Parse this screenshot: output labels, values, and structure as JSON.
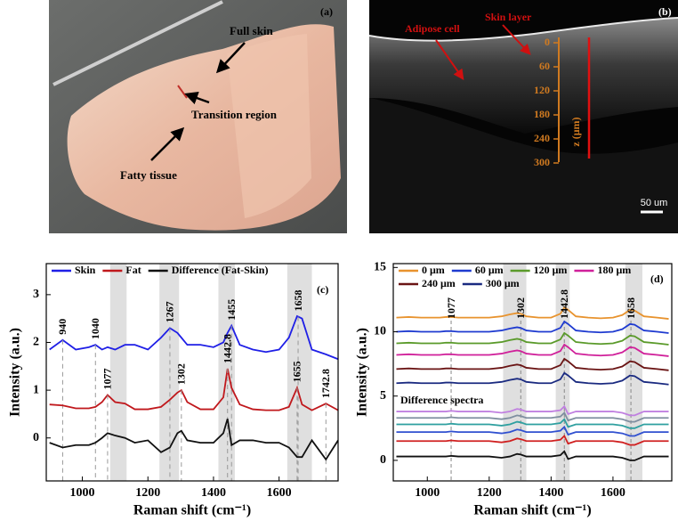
{
  "panel_a": {
    "label": "(a)",
    "annotations": [
      "Full skin",
      "Transition region",
      "Fatty tissue"
    ]
  },
  "panel_b": {
    "label": "(b)",
    "annotations": [
      "Adipose cell",
      "Skin layer"
    ],
    "depth_axis": {
      "label": "z (μm)",
      "ticks": [
        0,
        60,
        120,
        180,
        240,
        300
      ]
    },
    "scale_bar": "50 um"
  },
  "chart_data": [
    {
      "type": "line",
      "label": "(c)",
      "xlabel": "Raman shift (cm⁻¹)",
      "ylabel": "Intensity (a.u.)",
      "xlim": [
        890,
        1780
      ],
      "xticks": [
        1000,
        1200,
        1400,
        1600
      ],
      "ylim": [
        -0.9,
        3.65
      ],
      "yticks": [
        0,
        1,
        2,
        3
      ],
      "bands": [
        [
          1085,
          1135
        ],
        [
          1235,
          1295
        ],
        [
          1415,
          1465
        ],
        [
          1625,
          1700
        ]
      ],
      "x": [
        900,
        940,
        980,
        1020,
        1040,
        1060,
        1077,
        1100,
        1130,
        1160,
        1200,
        1240,
        1267,
        1290,
        1302,
        1320,
        1360,
        1400,
        1430,
        1442.8,
        1455,
        1480,
        1520,
        1560,
        1600,
        1630,
        1655,
        1670,
        1700,
        1742.8,
        1780
      ],
      "series": [
        {
          "name": "Skin",
          "color": "#1f1fe6",
          "peaks": [
            940,
            1040,
            1267,
            1455,
            1658
          ],
          "values": [
            1.85,
            2.05,
            1.85,
            1.9,
            1.95,
            1.85,
            1.9,
            1.85,
            1.95,
            1.95,
            1.85,
            2.1,
            2.3,
            2.2,
            2.1,
            1.95,
            1.95,
            1.9,
            2.0,
            2.2,
            2.35,
            1.95,
            1.85,
            1.8,
            1.85,
            2.1,
            2.55,
            2.5,
            1.85,
            1.75,
            1.65
          ]
        },
        {
          "name": "Fat",
          "color": "#c0181c",
          "peaks": [
            1077,
            1302,
            1442.8,
            1655,
            1742.8
          ],
          "values": [
            0.7,
            0.68,
            0.62,
            0.62,
            0.65,
            0.75,
            0.9,
            0.75,
            0.72,
            0.6,
            0.6,
            0.65,
            0.8,
            0.95,
            1.0,
            0.75,
            0.6,
            0.6,
            0.85,
            1.45,
            1.05,
            0.7,
            0.6,
            0.58,
            0.58,
            0.65,
            1.05,
            0.7,
            0.58,
            0.72,
            0.58
          ]
        },
        {
          "name": "Difference (Fat-Skin)",
          "color": "#111111",
          "values": [
            -0.1,
            -0.2,
            -0.15,
            -0.15,
            -0.1,
            0.0,
            0.1,
            0.05,
            0.0,
            -0.1,
            -0.05,
            -0.3,
            -0.2,
            0.1,
            0.15,
            -0.05,
            -0.1,
            -0.1,
            0.1,
            0.4,
            -0.15,
            -0.05,
            -0.05,
            -0.1,
            -0.1,
            -0.2,
            -0.4,
            -0.4,
            -0.05,
            -0.45,
            -0.05
          ]
        }
      ]
    },
    {
      "type": "line",
      "label": "(d)",
      "xlabel": "Raman shift (cm⁻¹)",
      "ylabel": "Intensity (a.u.)",
      "xlim": [
        890,
        1790
      ],
      "xticks": [
        1000,
        1200,
        1400,
        1600
      ],
      "ylim": [
        -1.6,
        15.3
      ],
      "yticks": [
        0,
        5,
        10,
        15
      ],
      "bands": [
        [
          1245,
          1320
        ],
        [
          1415,
          1460
        ],
        [
          1640,
          1695
        ]
      ],
      "peaks": [
        1077,
        1302,
        1442.8,
        1658
      ],
      "annotations": [
        "Difference spectra"
      ],
      "x": [
        900,
        940,
        980,
        1020,
        1040,
        1060,
        1077,
        1100,
        1130,
        1160,
        1200,
        1240,
        1267,
        1290,
        1302,
        1320,
        1360,
        1400,
        1430,
        1442.8,
        1455,
        1480,
        1520,
        1560,
        1600,
        1630,
        1655,
        1670,
        1700,
        1742.8,
        1780
      ],
      "series": [
        {
          "name": "0 μm",
          "color": "#e8932e",
          "values": [
            11.1,
            11.15,
            11.1,
            11.1,
            11.1,
            11.15,
            11.15,
            11.1,
            11.1,
            11.1,
            11.1,
            11.2,
            11.35,
            11.45,
            11.4,
            11.2,
            11.1,
            11.1,
            11.4,
            11.9,
            11.7,
            11.2,
            11.1,
            11.05,
            11.1,
            11.3,
            11.7,
            11.65,
            11.2,
            11.1,
            11.0
          ]
        },
        {
          "name": "60 μm",
          "color": "#1f3bd0",
          "values": [
            10.0,
            10.05,
            10.0,
            10.0,
            10.0,
            10.05,
            10.05,
            10.0,
            10.0,
            10.0,
            10.0,
            10.1,
            10.25,
            10.35,
            10.3,
            10.1,
            10.0,
            10.0,
            10.3,
            10.8,
            10.6,
            10.1,
            10.0,
            9.95,
            10.0,
            10.2,
            10.6,
            10.55,
            10.1,
            10.0,
            9.9
          ]
        },
        {
          "name": "120 μm",
          "color": "#5a9a2a",
          "values": [
            9.1,
            9.15,
            9.1,
            9.1,
            9.1,
            9.15,
            9.15,
            9.1,
            9.1,
            9.1,
            9.1,
            9.2,
            9.35,
            9.45,
            9.4,
            9.2,
            9.1,
            9.1,
            9.4,
            9.9,
            9.7,
            9.2,
            9.1,
            9.05,
            9.1,
            9.3,
            9.7,
            9.65,
            9.2,
            9.1,
            9.0
          ]
        },
        {
          "name": "180 μm",
          "color": "#d0209a",
          "values": [
            8.2,
            8.25,
            8.2,
            8.2,
            8.2,
            8.25,
            8.25,
            8.2,
            8.2,
            8.2,
            8.2,
            8.3,
            8.45,
            8.55,
            8.5,
            8.3,
            8.2,
            8.2,
            8.5,
            9.0,
            8.8,
            8.3,
            8.2,
            8.15,
            8.2,
            8.4,
            8.8,
            8.75,
            8.3,
            8.2,
            8.1
          ]
        },
        {
          "name": "240 μm",
          "color": "#6a1414",
          "values": [
            7.1,
            7.15,
            7.1,
            7.1,
            7.1,
            7.15,
            7.15,
            7.1,
            7.1,
            7.1,
            7.1,
            7.2,
            7.35,
            7.45,
            7.4,
            7.2,
            7.1,
            7.1,
            7.4,
            7.9,
            7.7,
            7.2,
            7.1,
            7.05,
            7.1,
            7.3,
            7.7,
            7.65,
            7.2,
            7.1,
            7.0
          ]
        },
        {
          "name": "300 μm",
          "color": "#1a2a80",
          "values": [
            6.0,
            6.05,
            6.0,
            6.0,
            6.0,
            6.05,
            6.05,
            6.0,
            6.0,
            6.0,
            6.0,
            6.1,
            6.25,
            6.35,
            6.3,
            6.1,
            6.0,
            6.0,
            6.3,
            6.8,
            6.6,
            6.1,
            6.0,
            5.95,
            6.0,
            6.2,
            6.6,
            6.55,
            6.1,
            6.0,
            5.9
          ]
        },
        {
          "color": "#c080e0",
          "values": [
            3.8,
            3.8,
            3.8,
            3.8,
            3.8,
            3.8,
            3.85,
            3.8,
            3.8,
            3.8,
            3.8,
            3.7,
            3.8,
            4.0,
            3.95,
            3.8,
            3.8,
            3.8,
            3.9,
            4.2,
            3.6,
            3.8,
            3.8,
            3.8,
            3.8,
            3.7,
            3.5,
            3.5,
            3.8,
            3.8,
            3.8
          ]
        },
        {
          "color": "#7f8fa0",
          "values": [
            3.3,
            3.3,
            3.3,
            3.3,
            3.3,
            3.3,
            3.35,
            3.3,
            3.3,
            3.3,
            3.3,
            3.2,
            3.3,
            3.5,
            3.45,
            3.3,
            3.3,
            3.3,
            3.4,
            3.7,
            3.1,
            3.3,
            3.3,
            3.3,
            3.3,
            3.2,
            3.0,
            3.0,
            3.3,
            3.3,
            3.3
          ]
        },
        {
          "color": "#2fa0a0",
          "values": [
            2.8,
            2.8,
            2.8,
            2.8,
            2.8,
            2.8,
            2.85,
            2.8,
            2.8,
            2.8,
            2.8,
            2.7,
            2.8,
            3.0,
            2.95,
            2.8,
            2.8,
            2.8,
            2.9,
            3.2,
            2.6,
            2.8,
            2.8,
            2.8,
            2.8,
            2.7,
            2.5,
            2.5,
            2.8,
            2.8,
            2.8
          ]
        },
        {
          "color": "#3050d0",
          "values": [
            2.2,
            2.2,
            2.2,
            2.2,
            2.2,
            2.2,
            2.25,
            2.2,
            2.2,
            2.2,
            2.2,
            2.1,
            2.2,
            2.4,
            2.35,
            2.2,
            2.2,
            2.2,
            2.3,
            2.6,
            2.0,
            2.2,
            2.2,
            2.2,
            2.2,
            2.1,
            1.9,
            1.9,
            2.2,
            2.2,
            2.2
          ]
        },
        {
          "color": "#d02020",
          "values": [
            1.5,
            1.5,
            1.5,
            1.5,
            1.5,
            1.5,
            1.55,
            1.5,
            1.5,
            1.5,
            1.5,
            1.4,
            1.5,
            1.7,
            1.65,
            1.5,
            1.5,
            1.5,
            1.6,
            1.9,
            1.3,
            1.5,
            1.5,
            1.5,
            1.5,
            1.4,
            1.2,
            1.2,
            1.5,
            1.5,
            1.5
          ]
        },
        {
          "color": "#111111",
          "values": [
            0.3,
            0.3,
            0.3,
            0.3,
            0.3,
            0.3,
            0.35,
            0.3,
            0.3,
            0.3,
            0.3,
            0.2,
            0.3,
            0.5,
            0.45,
            0.3,
            0.3,
            0.3,
            0.4,
            0.7,
            0.1,
            0.3,
            0.3,
            0.3,
            0.3,
            0.2,
            0.0,
            0.0,
            0.3,
            0.3,
            0.3
          ]
        }
      ]
    }
  ]
}
